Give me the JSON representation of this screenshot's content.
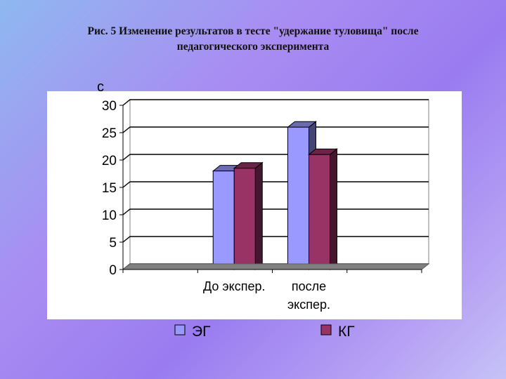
{
  "slide": {
    "title_line1": "Рис. 5 Изменение результатов в тесте \"удержание туловища\" после",
    "title_line2": "педагогического эксперимента"
  },
  "chart_data": {
    "type": "bar",
    "title": "",
    "ylabel": "с",
    "xlabel": "",
    "ylim": [
      0,
      30
    ],
    "yticks": [
      "0",
      "5",
      "10",
      "15",
      "20",
      "25",
      "30"
    ],
    "categories": [
      [
        "До экспер."
      ],
      [
        "после",
        "экспер."
      ]
    ],
    "series": [
      {
        "name": "ЭГ",
        "values": [
          18,
          26
        ],
        "color": "#9999ff"
      },
      {
        "name": "КГ",
        "values": [
          18.5,
          21
        ],
        "color": "#993366"
      }
    ],
    "grid": true,
    "legend": "bottom",
    "style": "3d"
  }
}
